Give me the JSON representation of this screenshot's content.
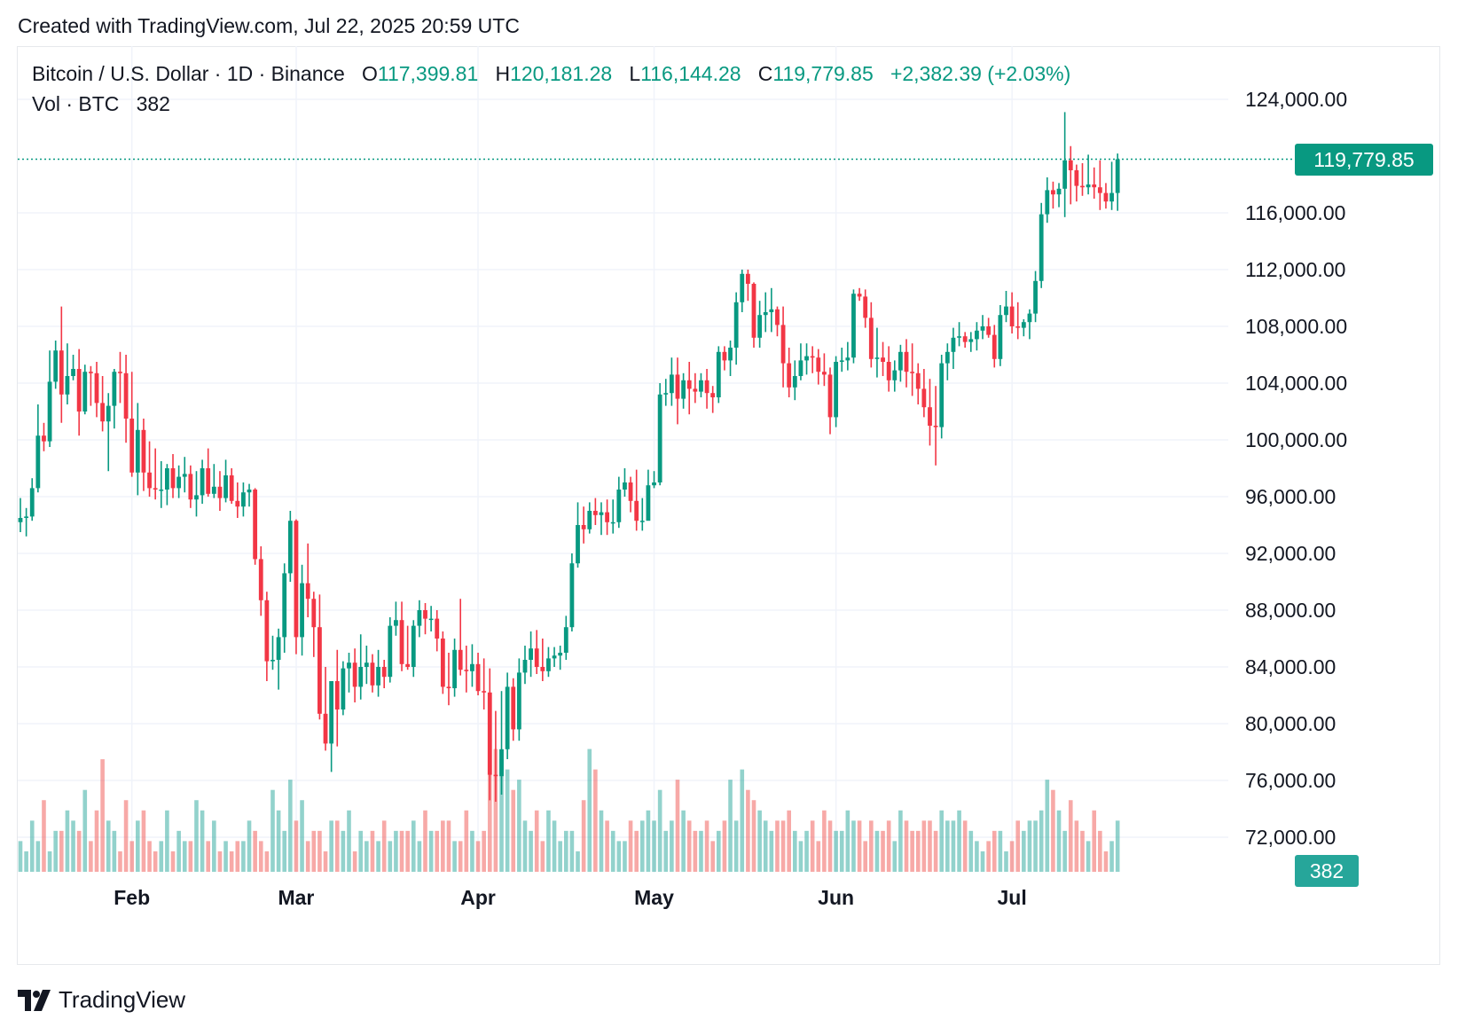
{
  "header": {
    "created_text": "Created with TradingView.com, Jul 22, 2025 20:59 UTC"
  },
  "legend": {
    "symbol": "Bitcoin / U.S. Dollar · 1D · Binance",
    "open_label": "O",
    "open": "117,399.81",
    "high_label": "H",
    "high": "120,181.28",
    "low_label": "L",
    "low": "116,144.28",
    "close_label": "C",
    "close": "119,779.85",
    "change": "+2,382.39 (+2.03%)",
    "vol_label": "Vol · BTC",
    "vol": "382"
  },
  "price_tag": "119,779.85",
  "volume_tag": "382",
  "footer": {
    "brand": "TradingView",
    "logo_icon": "tradingview-logo-icon"
  },
  "colors": {
    "up": "#089981",
    "down": "#f23645",
    "vol_up": "#26a69a",
    "vol_down": "#ef5350",
    "grid": "#f0f3fa",
    "text": "#131722"
  },
  "chart_data": {
    "type": "candlestick",
    "title": "Bitcoin / U.S. Dollar · 1D · Binance",
    "ylim": [
      70000,
      126000
    ],
    "y_ticks": [
      124000,
      116000,
      112000,
      108000,
      104000,
      100000,
      96000,
      92000,
      88000,
      84000,
      80000,
      76000,
      72000
    ],
    "y_tick_labels": [
      "124,000.00",
      "116,000.00",
      "112,000.00",
      "108,000.00",
      "104,000.00",
      "100,000.00",
      "96,000.00",
      "92,000.00",
      "88,000.00",
      "84,000.00",
      "80,000.00",
      "76,000.00",
      "72,000.00"
    ],
    "x_labels": [
      "Feb",
      "Mar",
      "Apr",
      "May",
      "Jun",
      "Jul"
    ],
    "x_label_dates": [
      "2025-02-01",
      "2025-03-01",
      "2025-04-01",
      "2025-05-01",
      "2025-06-01",
      "2025-07-01"
    ],
    "first_date": "2025-01-13",
    "last_close": 119779.85,
    "last_volume": 382,
    "closes": [
      94500,
      94600,
      96600,
      100300,
      99900,
      104100,
      106300,
      103200,
      104500,
      105000,
      102000,
      104800,
      104700,
      102600,
      101300,
      102400,
      104800,
      104700,
      101500,
      97700,
      100700,
      97700,
      96600,
      96500,
      96500,
      98000,
      96600,
      97400,
      97600,
      95800,
      96100,
      98000,
      96200,
      96700,
      95900,
      97500,
      95700,
      95300,
      96300,
      96500,
      91600,
      88700,
      84400,
      84500,
      86100,
      90600,
      94300,
      86100,
      89900,
      88800,
      86800,
      80700,
      78600,
      83000,
      81000,
      83900,
      84300,
      82600,
      84000,
      84300,
      82700,
      84000,
      83300,
      86900,
      87300,
      84200,
      84000,
      86900,
      88000,
      87400,
      87400,
      86000,
      82600,
      82500,
      85200,
      83800,
      83700,
      84200,
      82300,
      82200,
      76400,
      76300,
      78200,
      82600,
      79600,
      83600,
      84500,
      85300,
      84000,
      83700,
      84600,
      84800,
      85000,
      86800,
      91300,
      94000,
      93700,
      95000,
      94700,
      94900,
      94200,
      94200,
      96500,
      97000,
      95700,
      94300,
      94300,
      96800,
      97000,
      103200,
      103300,
      104600,
      102900,
      104200,
      103600,
      103400,
      104200,
      103300,
      103000,
      106200,
      105600,
      106500,
      109700,
      111700,
      111000,
      107200,
      108800,
      109000,
      109200,
      108100,
      105400,
      103700,
      104500,
      105600,
      105900,
      105800,
      104800,
      104600,
      101600,
      105500,
      105600,
      105800,
      110300,
      110100,
      108600,
      105700,
      105800,
      105500,
      104200,
      104900,
      106200,
      104800,
      104700,
      103600,
      102300,
      101000,
      100900,
      105400,
      106200,
      107200,
      107300,
      106900,
      107100,
      107700,
      108000,
      107400,
      105700,
      108800,
      109400,
      108000,
      107900,
      108300,
      108900,
      111200,
      115900,
      117600,
      117300,
      117700,
      119700,
      119000,
      117900,
      117800,
      118000,
      117800,
      117400,
      116800,
      117400,
      119780
    ],
    "opens": [
      94200,
      94500,
      94600,
      96600,
      100300,
      99900,
      104100,
      106300,
      103200,
      104500,
      105000,
      102000,
      104800,
      104700,
      102600,
      101300,
      102400,
      104800,
      104700,
      101500,
      97700,
      100700,
      97700,
      96600,
      96500,
      96500,
      98000,
      96600,
      97400,
      97600,
      95800,
      96100,
      98000,
      96200,
      96700,
      95900,
      97500,
      95700,
      95300,
      96300,
      96500,
      91600,
      88700,
      84400,
      84500,
      86100,
      90600,
      94300,
      86100,
      89900,
      88800,
      86800,
      80700,
      78600,
      83000,
      81000,
      83900,
      84300,
      82600,
      84000,
      84300,
      82700,
      84000,
      83300,
      86900,
      87300,
      84200,
      84000,
      86900,
      88000,
      87400,
      87400,
      86000,
      82600,
      82500,
      85200,
      83800,
      83700,
      84200,
      82300,
      82200,
      76400,
      76300,
      78200,
      82600,
      79600,
      83600,
      84500,
      85300,
      84000,
      83700,
      84600,
      84800,
      85000,
      86800,
      91300,
      94000,
      93700,
      95000,
      94700,
      94900,
      94200,
      94200,
      96500,
      97000,
      95700,
      94300,
      94300,
      96800,
      97000,
      103200,
      103300,
      104600,
      102900,
      104200,
      103600,
      103400,
      104200,
      103300,
      103000,
      106200,
      105600,
      106500,
      109700,
      111700,
      111000,
      107200,
      108800,
      109000,
      109200,
      108100,
      105400,
      103700,
      104500,
      105600,
      105900,
      105800,
      104800,
      104600,
      101600,
      105500,
      105600,
      105800,
      110300,
      110100,
      108600,
      105700,
      105800,
      105500,
      104200,
      104900,
      106200,
      104800,
      104700,
      103600,
      102300,
      101000,
      100900,
      105400,
      106200,
      107200,
      107300,
      106900,
      107100,
      107700,
      108000,
      107400,
      105700,
      108800,
      109400,
      108000,
      107900,
      108300,
      108900,
      111200,
      115900,
      117600,
      117300,
      117700,
      119700,
      119000,
      117900,
      117800,
      118000,
      117800,
      117400,
      116800,
      117400
    ],
    "highs": [
      95900,
      95200,
      97300,
      102500,
      101200,
      106300,
      107000,
      109400,
      106800,
      106000,
      106400,
      105300,
      105200,
      105500,
      104500,
      103300,
      105000,
      106200,
      106000,
      104800,
      102600,
      101500,
      99900,
      99400,
      98500,
      98300,
      99000,
      98200,
      98800,
      98200,
      97800,
      98600,
      99400,
      98300,
      97800,
      98600,
      98000,
      97000,
      97000,
      96900,
      96600,
      92500,
      89300,
      86200,
      86700,
      91300,
      95000,
      94400,
      91200,
      92700,
      89300,
      89100,
      84000,
      82400,
      85200,
      84400,
      85000,
      85300,
      86300,
      85500,
      84900,
      85200,
      84500,
      87500,
      88600,
      88600,
      86900,
      87300,
      88700,
      88500,
      88300,
      88000,
      86500,
      85000,
      86000,
      88800,
      85500,
      85600,
      85000,
      84600,
      83900,
      80900,
      82300,
      83600,
      83200,
      84600,
      85500,
      86500,
      86600,
      86000,
      85400,
      85400,
      85500,
      87600,
      92000,
      95600,
      95300,
      95600,
      95900,
      95600,
      95800,
      95800,
      97400,
      98000,
      97400,
      97900,
      95900,
      97900,
      97800,
      104000,
      104300,
      105800,
      105800,
      104700,
      105500,
      104700,
      104700,
      105000,
      103800,
      106600,
      106600,
      107000,
      110400,
      112000,
      112000,
      111100,
      109800,
      110400,
      110700,
      109400,
      109400,
      106500,
      105600,
      106800,
      106800,
      106600,
      106400,
      106100,
      105100,
      105900,
      106500,
      106900,
      110600,
      110700,
      110600,
      109700,
      107900,
      106900,
      106600,
      105600,
      106700,
      107100,
      106800,
      105400,
      105000,
      104300,
      103800,
      106000,
      106800,
      107900,
      108300,
      107600,
      107600,
      108300,
      108800,
      108600,
      108100,
      109500,
      110500,
      110400,
      109700,
      108500,
      109200,
      111900,
      116700,
      118500,
      118200,
      118100,
      123100,
      120700,
      119400,
      119500,
      120100,
      119200,
      119700,
      118100,
      119600,
      120181
    ],
    "lows": [
      93500,
      93200,
      94300,
      96300,
      99200,
      99500,
      103600,
      101200,
      102500,
      104200,
      100300,
      101800,
      102400,
      101600,
      100600,
      97800,
      100800,
      102600,
      99800,
      97400,
      96100,
      96400,
      96000,
      95800,
      95200,
      95400,
      95900,
      95900,
      96300,
      95200,
      94600,
      95500,
      96000,
      95900,
      95000,
      95600,
      95500,
      94500,
      94600,
      95300,
      91200,
      87600,
      83000,
      83800,
      82400,
      85000,
      90000,
      84900,
      84800,
      87500,
      84700,
      80300,
      78100,
      76600,
      78400,
      80600,
      82200,
      81500,
      81700,
      82800,
      82200,
      81900,
      82500,
      82900,
      86200,
      83700,
      83800,
      83300,
      86100,
      86300,
      86500,
      85100,
      82100,
      81300,
      81900,
      83400,
      82200,
      82600,
      82000,
      81000,
      74600,
      74500,
      75000,
      77500,
      78800,
      78800,
      82800,
      83300,
      83500,
      83000,
      83300,
      84000,
      83800,
      84500,
      86500,
      91000,
      92700,
      93400,
      94000,
      93300,
      93300,
      93400,
      93800,
      96000,
      94900,
      93600,
      93600,
      95800,
      96600,
      96800,
      102400,
      102400,
      101100,
      102200,
      101800,
      102600,
      103000,
      102200,
      101900,
      102600,
      104900,
      104500,
      105300,
      109000,
      109800,
      106500,
      106500,
      107600,
      107600,
      107300,
      103700,
      103000,
      102800,
      104200,
      104600,
      104700,
      103900,
      103800,
      100400,
      100900,
      104800,
      104900,
      105400,
      109800,
      107900,
      105100,
      104400,
      104500,
      103400,
      103400,
      104100,
      103700,
      103100,
      102500,
      101600,
      99600,
      98200,
      100100,
      104200,
      105000,
      106600,
      106500,
      106200,
      106300,
      107100,
      107200,
      105100,
      105200,
      108300,
      107500,
      107100,
      107300,
      107100,
      108300,
      110700,
      115300,
      116300,
      116400,
      115700,
      116600,
      116800,
      117200,
      117300,
      117000,
      116200,
      116300,
      116200,
      116144
    ],
    "volumes": [
      3,
      2,
      5,
      3,
      7,
      2,
      4,
      4,
      6,
      5,
      4,
      8,
      3,
      6,
      11,
      5,
      4,
      2,
      7,
      3,
      5,
      6,
      3,
      2,
      3,
      6,
      2,
      4,
      3,
      3,
      7,
      6,
      3,
      5,
      2,
      3,
      2,
      3,
      3,
      5,
      4,
      3,
      2,
      8,
      6,
      4,
      9,
      5,
      7,
      3,
      4,
      4,
      2,
      5,
      5,
      4,
      6,
      2,
      4,
      3,
      4,
      3,
      5,
      3,
      4,
      4,
      4,
      5,
      3,
      6,
      4,
      4,
      5,
      5,
      3,
      3,
      6,
      4,
      3,
      4,
      13,
      12,
      11,
      10,
      8,
      9,
      5,
      4,
      6,
      3,
      6,
      5,
      3,
      4,
      4,
      2,
      7,
      12,
      10,
      6,
      5,
      4,
      3,
      3,
      5,
      4,
      5,
      6,
      5,
      8,
      4,
      5,
      9,
      6,
      5,
      4,
      4,
      5,
      3,
      4,
      5,
      9,
      5,
      10,
      8,
      7,
      6,
      5,
      4,
      5,
      5,
      6,
      4,
      3,
      4,
      5,
      3,
      6,
      5,
      4,
      4,
      6,
      5,
      5,
      3,
      5,
      4,
      4,
      5,
      3,
      6,
      5,
      4,
      4,
      5,
      5,
      4,
      6,
      5,
      5,
      6,
      5,
      4,
      3,
      2,
      3,
      4,
      4,
      2,
      3,
      5,
      4,
      5,
      5,
      6,
      9,
      8,
      6,
      4,
      7,
      5,
      4,
      3,
      6,
      4,
      2,
      3,
      5,
      4
    ],
    "volume_scale_max": 13
  }
}
